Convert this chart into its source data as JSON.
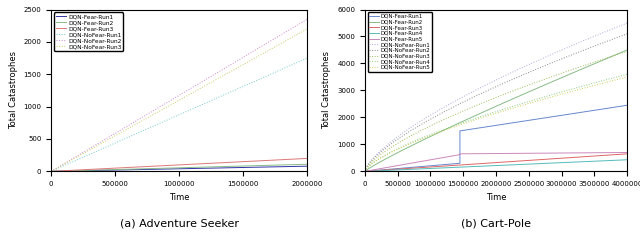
{
  "left": {
    "caption": "(a) Adventure Seeker",
    "xlabel": "Time",
    "ylabel": "Total Catastrophes",
    "xlim": [
      0,
      2000000
    ],
    "ylim": [
      0,
      2500
    ],
    "xticks": [
      0,
      500000,
      1000000,
      1500000,
      2000000
    ],
    "yticks": [
      0,
      500,
      1000,
      1500,
      2000,
      2500
    ],
    "fear_lines": [
      {
        "label": "DQN-Fear-Run1",
        "color": "#3333aa",
        "end_y": 80
      },
      {
        "label": "DQN-Fear-Run2",
        "color": "#88bb88",
        "end_y": 110
      },
      {
        "label": "DQN-Fear-Run3",
        "color": "#dd7777",
        "end_y": 200
      }
    ],
    "nofear_lines": [
      {
        "label": "DQN-NoFear-Run1",
        "color": "#77cccc",
        "end_y": 1750
      },
      {
        "label": "DQN-NoFear-Run2",
        "color": "#cc88cc",
        "end_y": 2350
      },
      {
        "label": "DQN-NoFear-Run3",
        "color": "#cccc66",
        "end_y": 2200
      }
    ]
  },
  "right": {
    "caption": "(b) Cart-Pole",
    "xlabel": "Time",
    "ylabel": "Total Catastrophes",
    "xlim": [
      0,
      4000000
    ],
    "ylim": [
      0,
      6000
    ],
    "xticks": [
      0,
      500000,
      1000000,
      1500000,
      2000000,
      2500000,
      3000000,
      3500000,
      4000000
    ],
    "yticks": [
      0,
      1000,
      2000,
      3000,
      4000,
      5000,
      6000
    ],
    "fear_lines": [
      {
        "label": "DQN-Fear-Run1",
        "color": "#6688cc",
        "step_x": 1450000,
        "pre_y": 300,
        "jump_y": 1500,
        "end_y": 2450
      },
      {
        "label": "DQN-Fear-Run2",
        "color": "#88bb88",
        "end_y": 4500
      },
      {
        "label": "DQN-Fear-Run3",
        "color": "#dd6666",
        "end_y": 650
      },
      {
        "label": "DQN-Fear-Run4",
        "color": "#55bbbb",
        "end_y": 430
      },
      {
        "label": "DQN-Fear-Run5",
        "color": "#cc88bb",
        "step_x": 1450000,
        "pre_y": 620,
        "jump_y": 650,
        "end_y": 700
      }
    ],
    "nofear_lines": [
      {
        "label": "DQN-NoFear-Run1",
        "color": "#aaaadd",
        "end_y": 5500
      },
      {
        "label": "DQN-NoFear-Run2",
        "color": "#888888",
        "end_y": 5100
      },
      {
        "label": "DQN-NoFear-Run3",
        "color": "#99bb55",
        "end_y": 4450
      },
      {
        "label": "DQN-NoFear-Run4",
        "color": "#88cc88",
        "end_y": 3600
      },
      {
        "label": "DQN-NoFear-Run5",
        "color": "#cccc55",
        "end_y": 3500
      }
    ]
  }
}
